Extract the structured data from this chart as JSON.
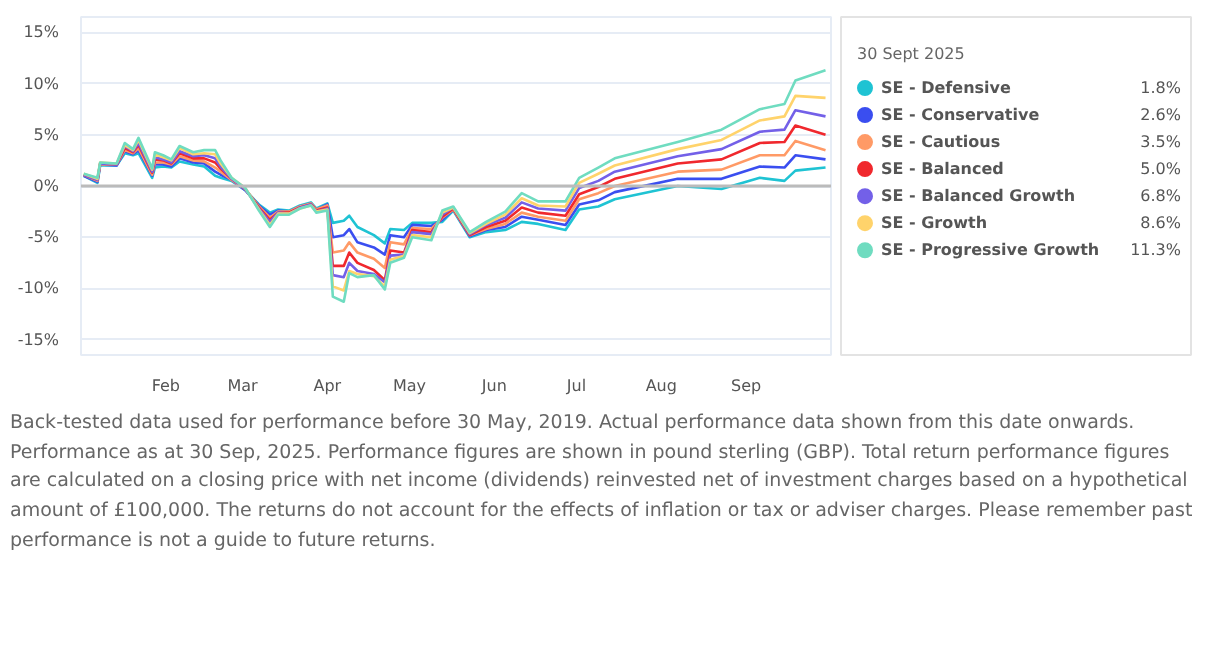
{
  "chart_data": {
    "type": "line",
    "x": [
      "2025-01-02",
      "2025-01-07",
      "2025-01-08",
      "2025-01-14",
      "2025-01-17",
      "2025-01-20",
      "2025-01-22",
      "2025-01-27",
      "2025-01-28",
      "2025-01-31",
      "2025-02-03",
      "2025-02-06",
      "2025-02-11",
      "2025-02-15",
      "2025-02-19",
      "2025-02-21",
      "2025-02-25",
      "2025-03-02",
      "2025-03-07",
      "2025-03-11",
      "2025-03-14",
      "2025-03-18",
      "2025-03-22",
      "2025-03-26",
      "2025-03-28",
      "2025-04-01",
      "2025-04-03",
      "2025-04-07",
      "2025-04-09",
      "2025-04-12",
      "2025-04-18",
      "2025-04-22",
      "2025-04-24",
      "2025-04-29",
      "2025-05-02",
      "2025-05-09",
      "2025-05-13",
      "2025-05-17",
      "2025-05-23",
      "2025-05-29",
      "2025-06-05",
      "2025-06-11",
      "2025-06-17",
      "2025-06-27",
      "2025-07-02",
      "2025-07-09",
      "2025-07-15",
      "2025-08-07",
      "2025-08-23",
      "2025-09-06",
      "2025-09-15",
      "2025-09-19",
      "2025-09-30"
    ],
    "series": [
      {
        "name": "SE - Defensive",
        "color": "#1fc3d3",
        "values": [
          1.0,
          0.3,
          2.0,
          2.0,
          3.2,
          3.0,
          3.2,
          0.8,
          1.8,
          1.9,
          1.8,
          2.4,
          2.1,
          1.9,
          1.0,
          0.8,
          0.5,
          -0.4,
          -1.8,
          -2.6,
          -2.3,
          -2.4,
          -1.9,
          -1.6,
          -2.2,
          -1.7,
          -3.6,
          -3.4,
          -2.9,
          -4.0,
          -4.8,
          -5.6,
          -4.2,
          -4.3,
          -3.6,
          -3.6,
          -3.5,
          -2.4,
          -5.0,
          -4.5,
          -4.3,
          -3.5,
          -3.7,
          -4.3,
          -2.3,
          -2.0,
          -1.3,
          0.0,
          -0.3,
          0.8,
          0.5,
          1.5,
          1.8
        ]
      },
      {
        "name": "SE - Conservative",
        "color": "#3a4ef0",
        "values": [
          1.0,
          0.4,
          2.1,
          2.0,
          3.4,
          3.1,
          3.5,
          1.0,
          2.1,
          2.1,
          1.9,
          2.7,
          2.3,
          2.2,
          1.4,
          1.1,
          0.6,
          -0.4,
          -1.9,
          -2.8,
          -2.4,
          -2.5,
          -2.0,
          -1.7,
          -2.3,
          -1.8,
          -5.0,
          -4.8,
          -4.2,
          -5.5,
          -6.0,
          -6.7,
          -4.8,
          -5.0,
          -3.8,
          -3.9,
          -3.3,
          -2.3,
          -4.9,
          -4.3,
          -4.0,
          -3.0,
          -3.3,
          -3.8,
          -1.8,
          -1.4,
          -0.6,
          0.7,
          0.7,
          1.9,
          1.8,
          3.0,
          2.6
        ]
      },
      {
        "name": "SE - Cautious",
        "color": "#ff9a66",
        "values": [
          1.1,
          0.5,
          2.1,
          2.1,
          3.5,
          3.2,
          3.7,
          1.1,
          2.3,
          2.3,
          2.1,
          2.9,
          2.5,
          2.4,
          1.8,
          1.4,
          0.6,
          -0.3,
          -2.0,
          -3.1,
          -2.5,
          -2.5,
          -2.0,
          -1.7,
          -2.3,
          -1.9,
          -6.5,
          -6.3,
          -5.5,
          -6.5,
          -7.1,
          -8.0,
          -5.5,
          -5.7,
          -4.1,
          -4.2,
          -3.1,
          -2.3,
          -4.8,
          -4.2,
          -3.7,
          -2.6,
          -3.0,
          -3.4,
          -1.3,
          -0.7,
          0.0,
          1.4,
          1.6,
          3.0,
          3.0,
          4.4,
          3.5
        ]
      },
      {
        "name": "SE - Balanced",
        "color": "#f0282d",
        "values": [
          1.1,
          0.6,
          2.2,
          2.1,
          3.7,
          3.3,
          4.0,
          1.3,
          2.6,
          2.5,
          2.2,
          3.2,
          2.7,
          2.7,
          2.3,
          1.7,
          0.7,
          -0.3,
          -2.1,
          -3.3,
          -2.6,
          -2.6,
          -2.1,
          -1.8,
          -2.4,
          -2.1,
          -7.8,
          -7.8,
          -6.5,
          -7.5,
          -8.2,
          -9.2,
          -6.3,
          -6.5,
          -4.3,
          -4.5,
          -3.0,
          -2.2,
          -4.8,
          -4.0,
          -3.4,
          -2.1,
          -2.6,
          -2.9,
          -0.8,
          -0.1,
          0.7,
          2.2,
          2.6,
          4.2,
          4.3,
          5.9,
          5.0
        ]
      },
      {
        "name": "SE - Balanced Growth",
        "color": "#7360e8",
        "values": [
          1.1,
          0.6,
          2.2,
          2.1,
          3.9,
          3.4,
          4.2,
          1.4,
          2.8,
          2.6,
          2.3,
          3.4,
          2.9,
          3.0,
          2.7,
          1.9,
          0.7,
          -0.3,
          -2.2,
          -3.5,
          -2.6,
          -2.7,
          -2.1,
          -1.8,
          -2.5,
          -2.2,
          -8.7,
          -8.9,
          -7.5,
          -8.3,
          -8.6,
          -9.4,
          -6.8,
          -6.7,
          -4.5,
          -4.7,
          -2.8,
          -2.1,
          -4.7,
          -3.8,
          -3.1,
          -1.6,
          -2.2,
          -2.4,
          -0.2,
          0.5,
          1.4,
          2.9,
          3.6,
          5.3,
          5.5,
          7.4,
          6.8
        ]
      },
      {
        "name": "SE - Growth",
        "color": "#ffd36b",
        "values": [
          1.2,
          0.7,
          2.3,
          2.2,
          4.0,
          3.5,
          4.5,
          1.6,
          3.1,
          2.8,
          2.5,
          3.7,
          3.1,
          3.2,
          3.1,
          2.2,
          0.8,
          -0.2,
          -2.3,
          -3.8,
          -2.7,
          -2.7,
          -2.2,
          -1.9,
          -2.5,
          -2.3,
          -9.8,
          -10.2,
          -8.3,
          -8.6,
          -8.8,
          -9.8,
          -7.2,
          -6.8,
          -4.8,
          -5.0,
          -2.6,
          -2.1,
          -4.6,
          -3.7,
          -2.8,
          -1.2,
          -1.9,
          -2.0,
          0.3,
          1.2,
          2.0,
          3.6,
          4.5,
          6.4,
          6.8,
          8.8,
          8.6
        ]
      },
      {
        "name": "SE - Progressive Growth",
        "color": "#6fdcc0",
        "values": [
          1.2,
          0.8,
          2.3,
          2.2,
          4.2,
          3.6,
          4.7,
          1.7,
          3.3,
          3.0,
          2.6,
          3.9,
          3.3,
          3.5,
          3.5,
          2.5,
          0.8,
          -0.2,
          -2.4,
          -4.0,
          -2.8,
          -2.8,
          -2.2,
          -1.9,
          -2.6,
          -2.4,
          -10.8,
          -11.3,
          -8.5,
          -8.9,
          -8.7,
          -10.1,
          -7.5,
          -7.0,
          -5.0,
          -5.3,
          -2.4,
          -2.0,
          -4.5,
          -3.5,
          -2.5,
          -0.7,
          -1.5,
          -1.5,
          0.8,
          1.8,
          2.7,
          4.3,
          5.5,
          7.5,
          8.0,
          10.3,
          11.3
        ]
      }
    ],
    "xlim": [
      "2025-01-01",
      "2025-10-02"
    ],
    "xticks": [
      {
        "value": "2025-02-01",
        "label": "Feb"
      },
      {
        "value": "2025-03-01",
        "label": "Mar"
      },
      {
        "value": "2025-04-01",
        "label": "Apr"
      },
      {
        "value": "2025-05-01",
        "label": "May"
      },
      {
        "value": "2025-06-01",
        "label": "Jun"
      },
      {
        "value": "2025-07-01",
        "label": "Jul"
      },
      {
        "value": "2025-08-01",
        "label": "Aug"
      },
      {
        "value": "2025-09-01",
        "label": "Sep"
      }
    ],
    "ylim": [
      -16.5,
      16.5
    ],
    "yticks": [
      {
        "value": -15,
        "label": "-15%"
      },
      {
        "value": -10,
        "label": "-10%"
      },
      {
        "value": -5,
        "label": "-5%"
      },
      {
        "value": 0,
        "label": "0%"
      },
      {
        "value": 5,
        "label": "5%"
      },
      {
        "value": 10,
        "label": "10%"
      },
      {
        "value": 15,
        "label": "15%"
      }
    ],
    "ref_lines": [
      {
        "axis": "y",
        "value": 0,
        "label": null,
        "color": "#bbbbbb"
      }
    ],
    "grid": "y",
    "legend": "right",
    "legend_title": "30 Sept 2025",
    "marker": "none",
    "line_style": "solid",
    "annotations": [
      "1.8%",
      "2.6%",
      "3.5%",
      "5.0%",
      "6.8%",
      "8.6%",
      "11.3%",
      "Back-tested data used for performance before 30 May, 2019. Actual performance data shown from this date onwards. Performance as at 30 Sep, 2025. Performance figures are shown in pound sterling (GBP). Total return performance figures are calculated on a closing price with net income (dividends) reinvested net of investment charges based on a hypothetical amount of £100,000. The returns do not account for the effects of inflation or tax or adviser charges. Please remember past performance is not a guide to future returns."
    ]
  }
}
